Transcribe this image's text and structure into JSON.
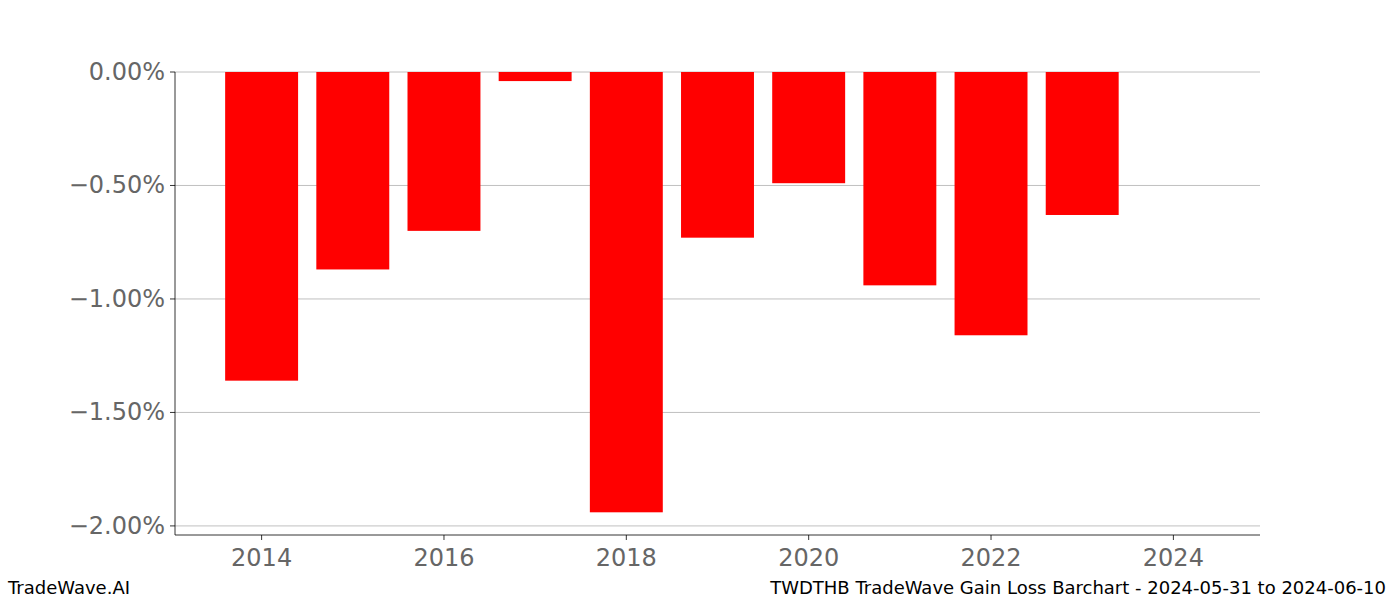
{
  "chart_data": {
    "type": "bar",
    "title": "TWDTHB TradeWave Gain Loss Barchart - 2024-05-31 to 2024-06-10",
    "annotations": [
      "TradeWave.AI"
    ],
    "x": [
      2014,
      2015,
      2016,
      2017,
      2018,
      2019,
      2020,
      2021,
      2022,
      2023
    ],
    "values": [
      -1.36,
      -0.87,
      -0.7,
      -0.04,
      -1.94,
      -0.73,
      -0.49,
      -0.94,
      -1.16,
      -0.63
    ],
    "color": "#ff0000",
    "xlim": [
      2013.05,
      2024.95
    ],
    "xticks": [
      2014,
      2016,
      2018,
      2020,
      2022,
      2024
    ],
    "ylim": [
      -2.04,
      0
    ],
    "yticks": [
      {
        "value": 0,
        "label": "0.00%"
      },
      {
        "value": -0.5,
        "label": "−0.50%"
      },
      {
        "value": -1,
        "label": "−1.00%"
      },
      {
        "value": -1.5,
        "label": "−1.50%"
      },
      {
        "value": -2,
        "label": "−2.00%"
      }
    ],
    "grid": true
  }
}
